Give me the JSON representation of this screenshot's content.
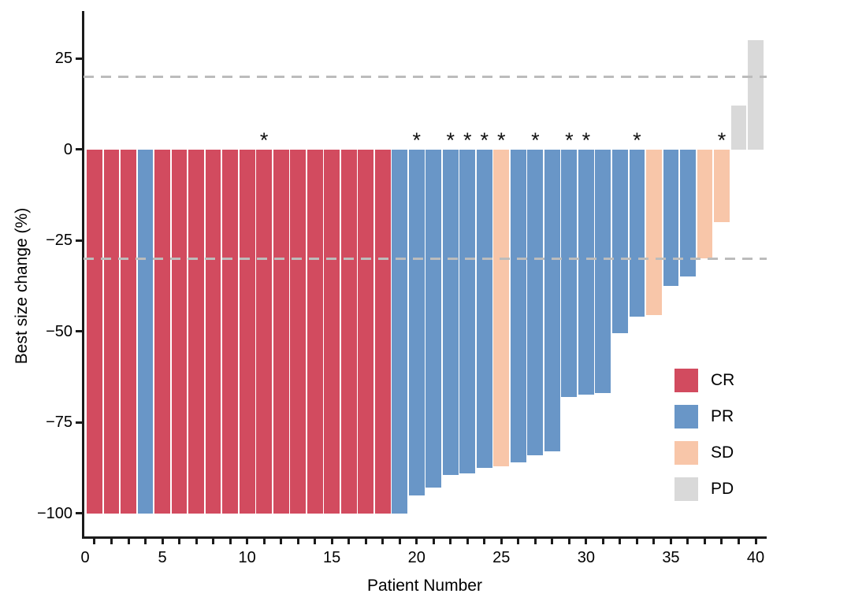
{
  "chart_data": {
    "type": "bar",
    "subtype": "waterfall",
    "title": "",
    "xlabel": "Patient Number",
    "ylabel": "Best size change (%)",
    "xlim": [
      0.35,
      40.65
    ],
    "ylim": [
      -107,
      38
    ],
    "grid": false,
    "x_major_ticks": [
      {
        "value": 0,
        "label": "0"
      },
      {
        "value": 5,
        "label": "5"
      },
      {
        "value": 10,
        "label": "10"
      },
      {
        "value": 15,
        "label": "15"
      },
      {
        "value": 20,
        "label": "20"
      },
      {
        "value": 25,
        "label": "25"
      },
      {
        "value": 30,
        "label": "30"
      },
      {
        "value": 35,
        "label": "35"
      },
      {
        "value": 40,
        "label": "40"
      }
    ],
    "x_minor_tick_every": 1,
    "y_ticks": [
      {
        "value": 25,
        "label": "25"
      },
      {
        "value": 0,
        "label": "0"
      },
      {
        "value": -25,
        "label": "−25"
      },
      {
        "value": -50,
        "label": "−50"
      },
      {
        "value": -75,
        "label": "−75"
      },
      {
        "value": -100,
        "label": "−100"
      }
    ],
    "reference_lines": {
      "values": [
        20,
        -30
      ],
      "style": "dashed",
      "color": "#bcbcbc"
    },
    "flag_symbol": "*",
    "legend": {
      "position": "inside-right",
      "entries": [
        {
          "key": "CR",
          "label": "CR",
          "color": "#d24b5f"
        },
        {
          "key": "PR",
          "label": "PR",
          "color": "#6996c7"
        },
        {
          "key": "SD",
          "label": "SD",
          "color": "#f8c6a9"
        },
        {
          "key": "PD",
          "label": "PD",
          "color": "#d9d9d9"
        }
      ]
    },
    "patients": [
      {
        "patient": 1,
        "value": -100,
        "response": "CR",
        "flag": false
      },
      {
        "patient": 2,
        "value": -100,
        "response": "CR",
        "flag": false
      },
      {
        "patient": 3,
        "value": -100,
        "response": "CR",
        "flag": false
      },
      {
        "patient": 4,
        "value": -100,
        "response": "PR",
        "flag": false
      },
      {
        "patient": 5,
        "value": -100,
        "response": "CR",
        "flag": false
      },
      {
        "patient": 6,
        "value": -100,
        "response": "CR",
        "flag": false
      },
      {
        "patient": 7,
        "value": -100,
        "response": "CR",
        "flag": false
      },
      {
        "patient": 8,
        "value": -100,
        "response": "CR",
        "flag": false
      },
      {
        "patient": 9,
        "value": -100,
        "response": "CR",
        "flag": false
      },
      {
        "patient": 10,
        "value": -100,
        "response": "CR",
        "flag": false
      },
      {
        "patient": 11,
        "value": -100,
        "response": "CR",
        "flag": true
      },
      {
        "patient": 12,
        "value": -100,
        "response": "CR",
        "flag": false
      },
      {
        "patient": 13,
        "value": -100,
        "response": "CR",
        "flag": false
      },
      {
        "patient": 14,
        "value": -100,
        "response": "CR",
        "flag": false
      },
      {
        "patient": 15,
        "value": -100,
        "response": "CR",
        "flag": false
      },
      {
        "patient": 16,
        "value": -100,
        "response": "CR",
        "flag": false
      },
      {
        "patient": 17,
        "value": -100,
        "response": "CR",
        "flag": false
      },
      {
        "patient": 18,
        "value": -100,
        "response": "CR",
        "flag": false
      },
      {
        "patient": 19,
        "value": -100,
        "response": "PR",
        "flag": false
      },
      {
        "patient": 20,
        "value": -95,
        "response": "PR",
        "flag": true
      },
      {
        "patient": 21,
        "value": -93,
        "response": "PR",
        "flag": false
      },
      {
        "patient": 22,
        "value": -89.5,
        "response": "PR",
        "flag": true
      },
      {
        "patient": 23,
        "value": -89,
        "response": "PR",
        "flag": true
      },
      {
        "patient": 24,
        "value": -87.5,
        "response": "PR",
        "flag": true
      },
      {
        "patient": 25,
        "value": -87,
        "response": "SD",
        "flag": true
      },
      {
        "patient": 26,
        "value": -86,
        "response": "PR",
        "flag": false
      },
      {
        "patient": 27,
        "value": -84,
        "response": "PR",
        "flag": true
      },
      {
        "patient": 28,
        "value": -83,
        "response": "PR",
        "flag": false
      },
      {
        "patient": 29,
        "value": -68,
        "response": "PR",
        "flag": true
      },
      {
        "patient": 30,
        "value": -67.5,
        "response": "PR",
        "flag": true
      },
      {
        "patient": 31,
        "value": -67,
        "response": "PR",
        "flag": false
      },
      {
        "patient": 32,
        "value": -50.5,
        "response": "PR",
        "flag": false
      },
      {
        "patient": 33,
        "value": -46,
        "response": "PR",
        "flag": true
      },
      {
        "patient": 34,
        "value": -45.5,
        "response": "SD",
        "flag": false
      },
      {
        "patient": 35,
        "value": -37.5,
        "response": "PR",
        "flag": false
      },
      {
        "patient": 36,
        "value": -35,
        "response": "PR",
        "flag": false
      },
      {
        "patient": 37,
        "value": -30,
        "response": "SD",
        "flag": false
      },
      {
        "patient": 38,
        "value": -20,
        "response": "SD",
        "flag": true
      },
      {
        "patient": 39,
        "value": 12,
        "response": "PD",
        "flag": false
      },
      {
        "patient": 40,
        "value": 30,
        "response": "PD",
        "flag": false
      }
    ]
  }
}
